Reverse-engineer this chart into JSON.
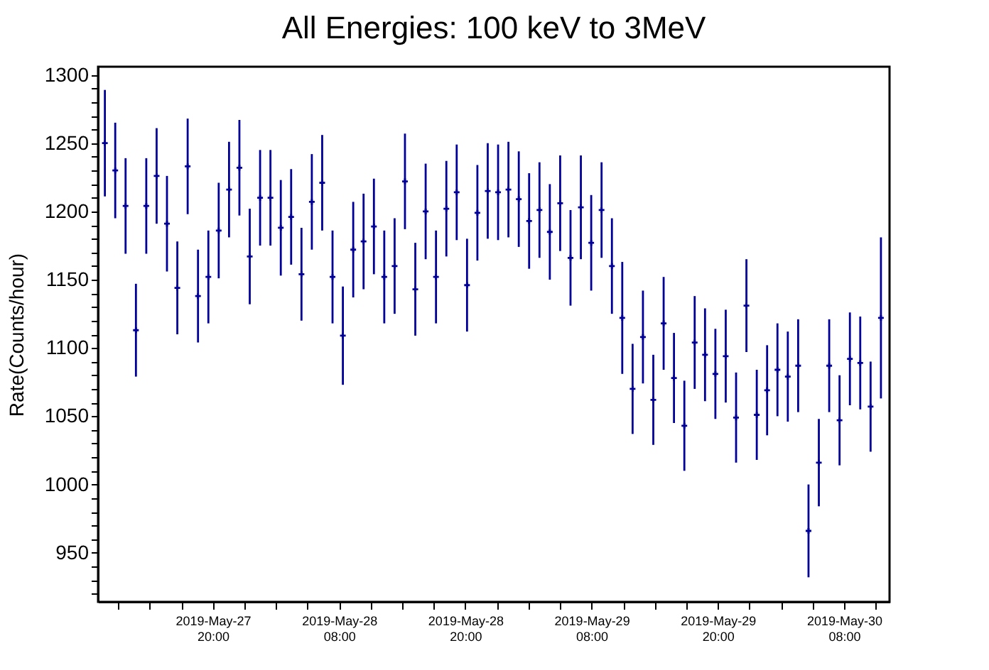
{
  "chart_data": {
    "type": "scatter",
    "title": "All Energies:  100 keV to 3MeV",
    "ylabel": "Rate(Counts/hour)",
    "x": [
      "2019-05-27T09:45",
      "2019-05-27T10:44",
      "2019-05-27T11:43",
      "2019-05-27T12:42",
      "2019-05-27T13:41",
      "2019-05-27T14:40",
      "2019-05-27T15:39",
      "2019-05-27T16:38",
      "2019-05-27T17:37",
      "2019-05-27T18:36",
      "2019-05-27T19:35",
      "2019-05-27T20:34",
      "2019-05-27T21:33",
      "2019-05-27T22:32",
      "2019-05-27T23:31",
      "2019-05-28T00:30",
      "2019-05-28T01:29",
      "2019-05-28T02:28",
      "2019-05-28T03:27",
      "2019-05-28T04:26",
      "2019-05-28T05:25",
      "2019-05-28T06:24",
      "2019-05-28T07:23",
      "2019-05-28T08:22",
      "2019-05-28T09:21",
      "2019-05-28T10:20",
      "2019-05-28T11:19",
      "2019-05-28T12:18",
      "2019-05-28T13:17",
      "2019-05-28T14:16",
      "2019-05-28T15:15",
      "2019-05-28T16:14",
      "2019-05-28T17:13",
      "2019-05-28T18:12",
      "2019-05-28T19:11",
      "2019-05-28T20:10",
      "2019-05-28T21:09",
      "2019-05-28T22:08",
      "2019-05-28T23:07",
      "2019-05-29T00:06",
      "2019-05-29T01:05",
      "2019-05-29T02:04",
      "2019-05-29T03:03",
      "2019-05-29T04:02",
      "2019-05-29T05:01",
      "2019-05-29T06:00",
      "2019-05-29T06:59",
      "2019-05-29T07:58",
      "2019-05-29T08:57",
      "2019-05-29T09:56",
      "2019-05-29T10:55",
      "2019-05-29T11:54",
      "2019-05-29T12:53",
      "2019-05-29T13:52",
      "2019-05-29T14:51",
      "2019-05-29T15:50",
      "2019-05-29T16:49",
      "2019-05-29T17:48",
      "2019-05-29T18:47",
      "2019-05-29T19:46",
      "2019-05-29T20:45",
      "2019-05-29T21:44",
      "2019-05-29T22:43",
      "2019-05-29T23:42",
      "2019-05-30T00:41",
      "2019-05-30T01:40",
      "2019-05-30T02:39",
      "2019-05-30T03:38",
      "2019-05-30T04:37",
      "2019-05-30T05:36",
      "2019-05-30T06:35",
      "2019-05-30T07:34",
      "2019-05-30T08:33",
      "2019-05-30T09:32",
      "2019-05-30T10:31",
      "2019-05-30T11:30"
    ],
    "series": [
      {
        "color": "#000099",
        "values": [
          1250,
          1230,
          1204,
          1113,
          1204,
          1226,
          1191,
          1144,
          1233,
          1138,
          1152,
          1186,
          1216,
          1232,
          1167,
          1210,
          1210,
          1188,
          1196,
          1154,
          1207,
          1221,
          1152,
          1109,
          1172,
          1178,
          1189,
          1152,
          1160,
          1222,
          1143,
          1200,
          1152,
          1202,
          1214,
          1146,
          1199,
          1215,
          1214,
          1216,
          1209,
          1193,
          1201,
          1185,
          1206,
          1166,
          1203,
          1177,
          1201,
          1160,
          1122,
          1070,
          1108,
          1062,
          1118,
          1078,
          1043,
          1104,
          1095,
          1081,
          1094,
          1049,
          1131,
          1051,
          1069,
          1084,
          1079,
          1087,
          966,
          1016,
          1087,
          1047,
          1092,
          1089,
          1057,
          1122
        ],
        "errors": [
          39,
          35,
          35,
          34,
          35,
          35,
          35,
          34,
          35,
          34,
          34,
          35,
          35,
          35,
          35,
          35,
          35,
          35,
          35,
          34,
          35,
          35,
          34,
          36,
          35,
          35,
          35,
          34,
          35,
          35,
          34,
          35,
          34,
          35,
          35,
          34,
          35,
          35,
          35,
          35,
          35,
          35,
          35,
          35,
          35,
          35,
          38,
          35,
          35,
          35,
          41,
          33,
          34,
          33,
          34,
          33,
          33,
          34,
          34,
          33,
          34,
          33,
          34,
          33,
          33,
          34,
          33,
          34,
          34,
          32,
          34,
          33,
          34,
          34,
          33,
          59
        ]
      }
    ],
    "xlim": [
      "2019-05-27T09:06",
      "2019-05-30T12:19"
    ],
    "xticks": [
      {
        "value": "2019-05-27T11:00",
        "label": null
      },
      {
        "value": "2019-05-27T14:00",
        "label": null
      },
      {
        "value": "2019-05-27T17:00",
        "label": null
      },
      {
        "value": "2019-05-27T20:00",
        "label": "2019-May-27\n20:00"
      },
      {
        "value": "2019-05-27T23:00",
        "label": null
      },
      {
        "value": "2019-05-28T02:00",
        "label": null
      },
      {
        "value": "2019-05-28T05:00",
        "label": null
      },
      {
        "value": "2019-05-28T08:00",
        "label": "2019-May-28\n08:00"
      },
      {
        "value": "2019-05-28T11:00",
        "label": null
      },
      {
        "value": "2019-05-28T14:00",
        "label": null
      },
      {
        "value": "2019-05-28T17:00",
        "label": null
      },
      {
        "value": "2019-05-28T20:00",
        "label": "2019-May-28\n20:00"
      },
      {
        "value": "2019-05-28T23:00",
        "label": null
      },
      {
        "value": "2019-05-29T02:00",
        "label": null
      },
      {
        "value": "2019-05-29T05:00",
        "label": null
      },
      {
        "value": "2019-05-29T08:00",
        "label": "2019-May-29\n08:00"
      },
      {
        "value": "2019-05-29T11:00",
        "label": null
      },
      {
        "value": "2019-05-29T14:00",
        "label": null
      },
      {
        "value": "2019-05-29T17:00",
        "label": null
      },
      {
        "value": "2019-05-29T20:00",
        "label": "2019-May-29\n20:00"
      },
      {
        "value": "2019-05-29T23:00",
        "label": null
      },
      {
        "value": "2019-05-30T02:00",
        "label": null
      },
      {
        "value": "2019-05-30T05:00",
        "label": null
      },
      {
        "value": "2019-05-30T08:00",
        "label": "2019-May-30\n08:00"
      },
      {
        "value": "2019-05-30T11:00",
        "label": null
      }
    ],
    "ylim": [
      914,
      1306
    ],
    "yticks": [
      {
        "value": 920,
        "label": null
      },
      {
        "value": 930,
        "label": null
      },
      {
        "value": 940,
        "label": null
      },
      950,
      {
        "value": 960,
        "label": null
      },
      {
        "value": 970,
        "label": null
      },
      {
        "value": 980,
        "label": null
      },
      {
        "value": 990,
        "label": null
      },
      1000,
      {
        "value": 1010,
        "label": null
      },
      {
        "value": 1020,
        "label": null
      },
      {
        "value": 1030,
        "label": null
      },
      {
        "value": 1040,
        "label": null
      },
      1050,
      {
        "value": 1060,
        "label": null
      },
      {
        "value": 1070,
        "label": null
      },
      {
        "value": 1080,
        "label": null
      },
      {
        "value": 1090,
        "label": null
      },
      1100,
      {
        "value": 1110,
        "label": null
      },
      {
        "value": 1120,
        "label": null
      },
      {
        "value": 1130,
        "label": null
      },
      {
        "value": 1140,
        "label": null
      },
      1150,
      {
        "value": 1160,
        "label": null
      },
      {
        "value": 1170,
        "label": null
      },
      {
        "value": 1180,
        "label": null
      },
      {
        "value": 1190,
        "label": null
      },
      1200,
      {
        "value": 1210,
        "label": null
      },
      {
        "value": 1220,
        "label": null
      },
      {
        "value": 1230,
        "label": null
      },
      {
        "value": 1240,
        "label": null
      },
      1250,
      {
        "value": 1260,
        "label": null
      },
      {
        "value": 1270,
        "label": null
      },
      {
        "value": 1280,
        "label": null
      },
      {
        "value": 1290,
        "label": null
      },
      1300
    ],
    "grid": false,
    "marker": "cross"
  }
}
